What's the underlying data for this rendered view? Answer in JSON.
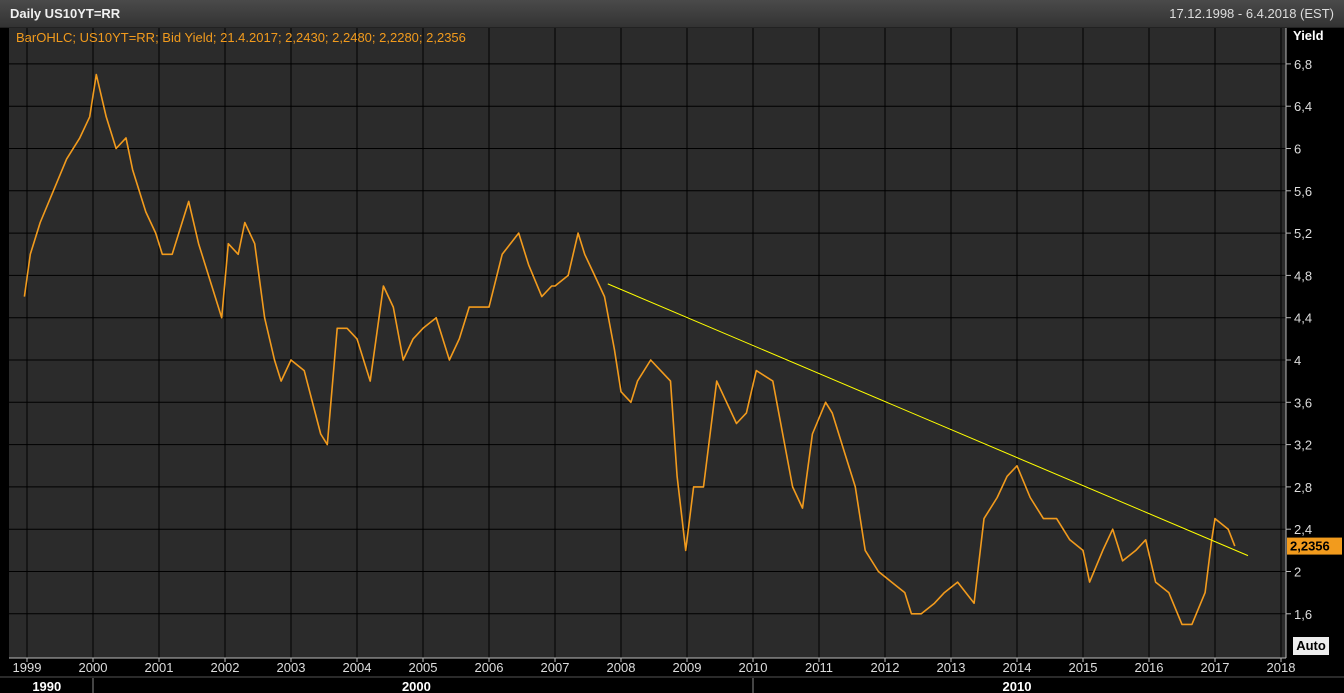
{
  "window": {
    "title": "Daily US10YT=RR",
    "date_range": "17.12.1998 - 6.4.2018 (EST)"
  },
  "legend_text": "BarOHLC; US10YT=RR; Bid Yield; 21.4.2017; 2,2430; 2,2480; 2,2280; 2,2356",
  "y_axis_title": "Yield",
  "auto_label": "Auto",
  "last_value_label": "2,2356",
  "colors": {
    "series": "#f29b1d",
    "trendline": "#ffff00",
    "plot_bg": "#2b2b2b",
    "grid": "#000000"
  },
  "chart_data": {
    "type": "line",
    "series": [
      {
        "name": "US10YT=RR",
        "x": [
          1998.96,
          1999.05,
          1999.2,
          1999.4,
          1999.6,
          1999.8,
          1999.95,
          2000.05,
          2000.2,
          2000.35,
          2000.5,
          2000.6,
          2000.8,
          2000.95,
          2001.05,
          2001.2,
          2001.35,
          2001.45,
          2001.6,
          2001.8,
          2001.95,
          2002.05,
          2002.2,
          2002.3,
          2002.45,
          2002.6,
          2002.75,
          2002.85,
          2003.0,
          2003.2,
          2003.45,
          2003.55,
          2003.7,
          2003.85,
          2004.0,
          2004.2,
          2004.4,
          2004.55,
          2004.7,
          2004.85,
          2005.0,
          2005.2,
          2005.4,
          2005.55,
          2005.7,
          2005.85,
          2006.0,
          2006.2,
          2006.45,
          2006.6,
          2006.8,
          2006.95,
          2007.0,
          2007.2,
          2007.35,
          2007.45,
          2007.6,
          2007.75,
          2007.9,
          2008.0,
          2008.15,
          2008.25,
          2008.45,
          2008.6,
          2008.75,
          2008.85,
          2008.98,
          2009.1,
          2009.25,
          2009.45,
          2009.6,
          2009.75,
          2009.9,
          2010.05,
          2010.3,
          2010.45,
          2010.6,
          2010.75,
          2010.9,
          2011.1,
          2011.2,
          2011.4,
          2011.55,
          2011.7,
          2011.9,
          2012.1,
          2012.3,
          2012.4,
          2012.55,
          2012.75,
          2012.9,
          2013.1,
          2013.35,
          2013.5,
          2013.7,
          2013.85,
          2014.0,
          2014.2,
          2014.4,
          2014.6,
          2014.8,
          2015.0,
          2015.1,
          2015.3,
          2015.45,
          2015.6,
          2015.8,
          2015.95,
          2016.1,
          2016.3,
          2016.5,
          2016.65,
          2016.85,
          2016.95,
          2017.0,
          2017.2,
          2017.3
        ],
        "y": [
          4.6,
          5.0,
          5.3,
          5.6,
          5.9,
          6.1,
          6.3,
          6.7,
          6.3,
          6.0,
          6.1,
          5.8,
          5.4,
          5.2,
          5.0,
          5.0,
          5.3,
          5.5,
          5.1,
          4.7,
          4.4,
          5.1,
          5.0,
          5.3,
          5.1,
          4.4,
          4.0,
          3.8,
          4.0,
          3.9,
          3.3,
          3.2,
          4.3,
          4.3,
          4.2,
          3.8,
          4.7,
          4.5,
          4.0,
          4.2,
          4.3,
          4.4,
          4.0,
          4.2,
          4.5,
          4.5,
          4.5,
          5.0,
          5.2,
          4.9,
          4.6,
          4.7,
          4.7,
          4.8,
          5.2,
          5.0,
          4.8,
          4.6,
          4.1,
          3.7,
          3.6,
          3.8,
          4.0,
          3.9,
          3.8,
          2.9,
          2.2,
          2.8,
          2.8,
          3.8,
          3.6,
          3.4,
          3.5,
          3.9,
          3.8,
          3.3,
          2.8,
          2.6,
          3.3,
          3.6,
          3.5,
          3.1,
          2.8,
          2.2,
          2.0,
          1.9,
          1.8,
          1.6,
          1.6,
          1.7,
          1.8,
          1.9,
          1.7,
          2.5,
          2.7,
          2.9,
          3.0,
          2.7,
          2.5,
          2.5,
          2.3,
          2.2,
          1.9,
          2.2,
          2.4,
          2.1,
          2.2,
          2.3,
          1.9,
          1.8,
          1.5,
          1.5,
          1.8,
          2.3,
          2.5,
          2.4,
          2.24
        ]
      }
    ],
    "trendline": {
      "x": [
        2007.8,
        2017.5
      ],
      "y": [
        4.72,
        2.15
      ]
    },
    "ylim": [
      1.2,
      7.0
    ],
    "xlim": [
      1998.96,
      2018.2
    ],
    "y_ticks": [
      1.6,
      2,
      2.4,
      2.8,
      3.2,
      3.6,
      4,
      4.4,
      4.8,
      5.2,
      5.6,
      6,
      6.4,
      6.8
    ],
    "y_tick_labels": [
      "1,6",
      "2",
      "2,4",
      "2,8",
      "3,2",
      "3,6",
      "4",
      "4,4",
      "4,8",
      "5,2",
      "5,6",
      "6",
      "6,4",
      "6,8"
    ],
    "x_ticks": [
      1999,
      2000,
      2001,
      2002,
      2003,
      2004,
      2005,
      2006,
      2007,
      2008,
      2009,
      2010,
      2011,
      2012,
      2013,
      2014,
      2015,
      2016,
      2017,
      2018
    ],
    "x_tick_labels": [
      "1999",
      "2000",
      "2001",
      "2002",
      "2003",
      "2004",
      "2005",
      "2006",
      "2007",
      "2008",
      "2009",
      "2010",
      "2011",
      "2012",
      "2013",
      "2014",
      "2015",
      "2016",
      "2017",
      "2018"
    ],
    "decades": [
      {
        "x": 1999.3,
        "label": "1990"
      },
      {
        "x": 2004.9,
        "label": "2000"
      },
      {
        "x": 2014.0,
        "label": "2010"
      }
    ],
    "decade_separators": [
      2000.0,
      2010.0
    ],
    "last_value": 2.2356,
    "grid": true,
    "legend": "top-left"
  }
}
